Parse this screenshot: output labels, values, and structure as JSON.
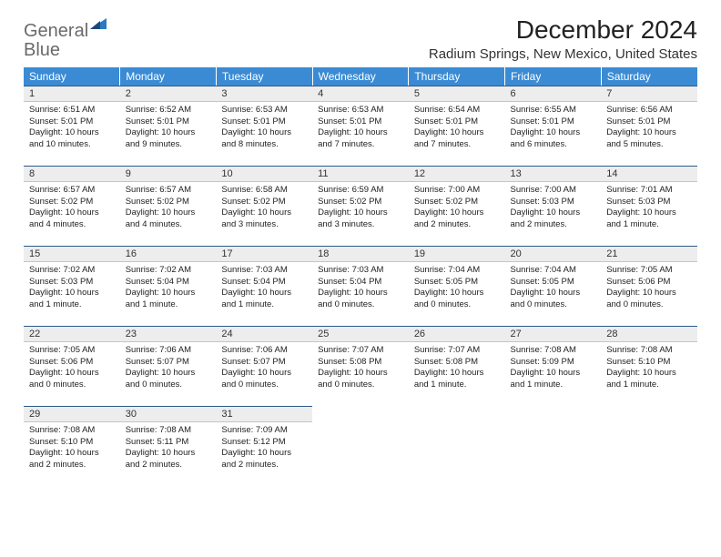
{
  "logo": {
    "text_gray": "General",
    "text_blue": "Blue"
  },
  "title": "December 2024",
  "location": "Radium Springs, New Mexico, United States",
  "colors": {
    "header_bg": "#3b8bd4",
    "header_text": "#ffffff",
    "daynum_bg": "#ededed",
    "daynum_border_top": "#2a5a8a",
    "logo_gray": "#6a6a6a",
    "logo_blue": "#2a7ac0"
  },
  "weekdays": [
    "Sunday",
    "Monday",
    "Tuesday",
    "Wednesday",
    "Thursday",
    "Friday",
    "Saturday"
  ],
  "weeks": [
    [
      {
        "n": "1",
        "sunrise": "Sunrise: 6:51 AM",
        "sunset": "Sunset: 5:01 PM",
        "daylight": "Daylight: 10 hours and 10 minutes."
      },
      {
        "n": "2",
        "sunrise": "Sunrise: 6:52 AM",
        "sunset": "Sunset: 5:01 PM",
        "daylight": "Daylight: 10 hours and 9 minutes."
      },
      {
        "n": "3",
        "sunrise": "Sunrise: 6:53 AM",
        "sunset": "Sunset: 5:01 PM",
        "daylight": "Daylight: 10 hours and 8 minutes."
      },
      {
        "n": "4",
        "sunrise": "Sunrise: 6:53 AM",
        "sunset": "Sunset: 5:01 PM",
        "daylight": "Daylight: 10 hours and 7 minutes."
      },
      {
        "n": "5",
        "sunrise": "Sunrise: 6:54 AM",
        "sunset": "Sunset: 5:01 PM",
        "daylight": "Daylight: 10 hours and 7 minutes."
      },
      {
        "n": "6",
        "sunrise": "Sunrise: 6:55 AM",
        "sunset": "Sunset: 5:01 PM",
        "daylight": "Daylight: 10 hours and 6 minutes."
      },
      {
        "n": "7",
        "sunrise": "Sunrise: 6:56 AM",
        "sunset": "Sunset: 5:01 PM",
        "daylight": "Daylight: 10 hours and 5 minutes."
      }
    ],
    [
      {
        "n": "8",
        "sunrise": "Sunrise: 6:57 AM",
        "sunset": "Sunset: 5:02 PM",
        "daylight": "Daylight: 10 hours and 4 minutes."
      },
      {
        "n": "9",
        "sunrise": "Sunrise: 6:57 AM",
        "sunset": "Sunset: 5:02 PM",
        "daylight": "Daylight: 10 hours and 4 minutes."
      },
      {
        "n": "10",
        "sunrise": "Sunrise: 6:58 AM",
        "sunset": "Sunset: 5:02 PM",
        "daylight": "Daylight: 10 hours and 3 minutes."
      },
      {
        "n": "11",
        "sunrise": "Sunrise: 6:59 AM",
        "sunset": "Sunset: 5:02 PM",
        "daylight": "Daylight: 10 hours and 3 minutes."
      },
      {
        "n": "12",
        "sunrise": "Sunrise: 7:00 AM",
        "sunset": "Sunset: 5:02 PM",
        "daylight": "Daylight: 10 hours and 2 minutes."
      },
      {
        "n": "13",
        "sunrise": "Sunrise: 7:00 AM",
        "sunset": "Sunset: 5:03 PM",
        "daylight": "Daylight: 10 hours and 2 minutes."
      },
      {
        "n": "14",
        "sunrise": "Sunrise: 7:01 AM",
        "sunset": "Sunset: 5:03 PM",
        "daylight": "Daylight: 10 hours and 1 minute."
      }
    ],
    [
      {
        "n": "15",
        "sunrise": "Sunrise: 7:02 AM",
        "sunset": "Sunset: 5:03 PM",
        "daylight": "Daylight: 10 hours and 1 minute."
      },
      {
        "n": "16",
        "sunrise": "Sunrise: 7:02 AM",
        "sunset": "Sunset: 5:04 PM",
        "daylight": "Daylight: 10 hours and 1 minute."
      },
      {
        "n": "17",
        "sunrise": "Sunrise: 7:03 AM",
        "sunset": "Sunset: 5:04 PM",
        "daylight": "Daylight: 10 hours and 1 minute."
      },
      {
        "n": "18",
        "sunrise": "Sunrise: 7:03 AM",
        "sunset": "Sunset: 5:04 PM",
        "daylight": "Daylight: 10 hours and 0 minutes."
      },
      {
        "n": "19",
        "sunrise": "Sunrise: 7:04 AM",
        "sunset": "Sunset: 5:05 PM",
        "daylight": "Daylight: 10 hours and 0 minutes."
      },
      {
        "n": "20",
        "sunrise": "Sunrise: 7:04 AM",
        "sunset": "Sunset: 5:05 PM",
        "daylight": "Daylight: 10 hours and 0 minutes."
      },
      {
        "n": "21",
        "sunrise": "Sunrise: 7:05 AM",
        "sunset": "Sunset: 5:06 PM",
        "daylight": "Daylight: 10 hours and 0 minutes."
      }
    ],
    [
      {
        "n": "22",
        "sunrise": "Sunrise: 7:05 AM",
        "sunset": "Sunset: 5:06 PM",
        "daylight": "Daylight: 10 hours and 0 minutes."
      },
      {
        "n": "23",
        "sunrise": "Sunrise: 7:06 AM",
        "sunset": "Sunset: 5:07 PM",
        "daylight": "Daylight: 10 hours and 0 minutes."
      },
      {
        "n": "24",
        "sunrise": "Sunrise: 7:06 AM",
        "sunset": "Sunset: 5:07 PM",
        "daylight": "Daylight: 10 hours and 0 minutes."
      },
      {
        "n": "25",
        "sunrise": "Sunrise: 7:07 AM",
        "sunset": "Sunset: 5:08 PM",
        "daylight": "Daylight: 10 hours and 0 minutes."
      },
      {
        "n": "26",
        "sunrise": "Sunrise: 7:07 AM",
        "sunset": "Sunset: 5:08 PM",
        "daylight": "Daylight: 10 hours and 1 minute."
      },
      {
        "n": "27",
        "sunrise": "Sunrise: 7:08 AM",
        "sunset": "Sunset: 5:09 PM",
        "daylight": "Daylight: 10 hours and 1 minute."
      },
      {
        "n": "28",
        "sunrise": "Sunrise: 7:08 AM",
        "sunset": "Sunset: 5:10 PM",
        "daylight": "Daylight: 10 hours and 1 minute."
      }
    ],
    [
      {
        "n": "29",
        "sunrise": "Sunrise: 7:08 AM",
        "sunset": "Sunset: 5:10 PM",
        "daylight": "Daylight: 10 hours and 2 minutes."
      },
      {
        "n": "30",
        "sunrise": "Sunrise: 7:08 AM",
        "sunset": "Sunset: 5:11 PM",
        "daylight": "Daylight: 10 hours and 2 minutes."
      },
      {
        "n": "31",
        "sunrise": "Sunrise: 7:09 AM",
        "sunset": "Sunset: 5:12 PM",
        "daylight": "Daylight: 10 hours and 2 minutes."
      },
      null,
      null,
      null,
      null
    ]
  ]
}
